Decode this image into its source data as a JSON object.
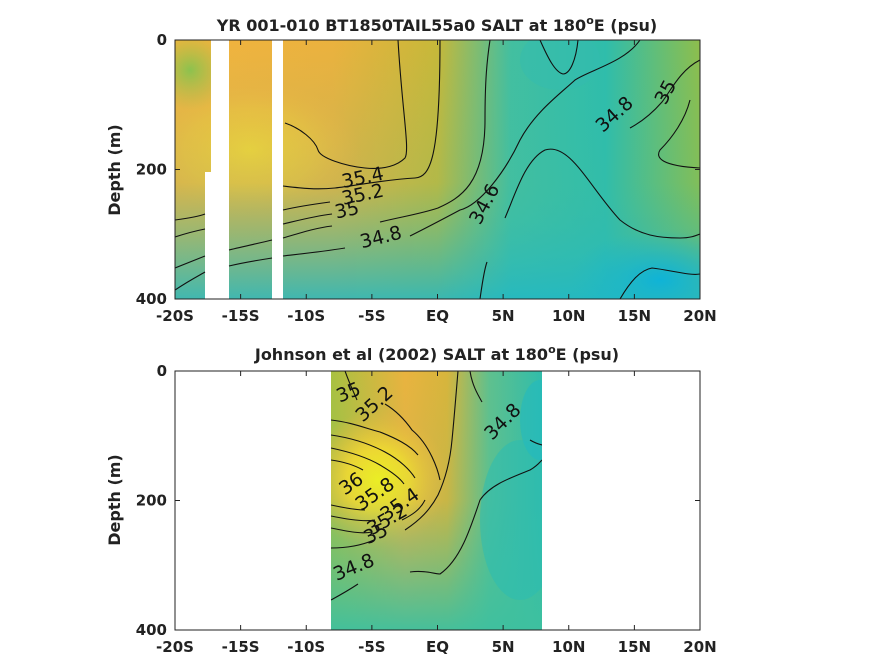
{
  "chart_data": [
    {
      "type": "heatmap",
      "title_main": "YR 001-010 BT1850TAIL55a0 SALT at 180",
      "title_sup": "o",
      "title_tail": "E (psu)",
      "ylabel": "Depth (m)",
      "xlabel": "",
      "x_ticks": [
        "-20S",
        "-15S",
        "-10S",
        "-5S",
        "EQ",
        "5N",
        "10N",
        "15N",
        "20N"
      ],
      "x_values": [
        -20,
        -15,
        -10,
        -5,
        0,
        5,
        10,
        15,
        20
      ],
      "xlim": [
        -20,
        20
      ],
      "y_ticks": [
        "0",
        "200",
        "400"
      ],
      "y_values": [
        0,
        200,
        400
      ],
      "ylim": [
        0,
        400
      ],
      "y_reversed": true,
      "colormap": "parula",
      "contour_labels": [
        {
          "text": "35.4",
          "x": -5.6,
          "y": 222
        },
        {
          "text": "35.2",
          "x": -5.6,
          "y": 248
        },
        {
          "text": "35",
          "x": -6.8,
          "y": 272
        },
        {
          "text": "34.8",
          "x": -4.2,
          "y": 314
        },
        {
          "text": "34.6",
          "x": 4.0,
          "y": 258
        },
        {
          "text": "34.8",
          "x": 13.8,
          "y": 122
        },
        {
          "text": "35",
          "x": 17.8,
          "y": 85
        }
      ]
    },
    {
      "type": "heatmap",
      "title_main": "Johnson et al (2002) SALT at 180",
      "title_sup": "o",
      "title_tail": "E (psu)",
      "ylabel": "Depth (m)",
      "xlabel": "",
      "x_ticks": [
        "-20S",
        "-15S",
        "-10S",
        "-5S",
        "EQ",
        "5N",
        "10N",
        "15N",
        "20N"
      ],
      "x_values": [
        -20,
        -15,
        -10,
        -5,
        0,
        5,
        10,
        15,
        20
      ],
      "xlim": [
        -20,
        20
      ],
      "y_ticks": [
        "0",
        "200",
        "400"
      ],
      "y_values": [
        0,
        200,
        400
      ],
      "ylim": [
        0,
        400
      ],
      "y_reversed": true,
      "data_x_range": [
        -8,
        8
      ],
      "colormap": "parula",
      "contour_labels": [
        {
          "text": "35",
          "x": -6.6,
          "y": 42
        },
        {
          "text": "35.2",
          "x": -4.5,
          "y": 58
        },
        {
          "text": "34.8",
          "x": 5.3,
          "y": 85
        },
        {
          "text": "36",
          "x": -6.3,
          "y": 182
        },
        {
          "text": "35.8",
          "x": -4.5,
          "y": 198
        },
        {
          "text": "35.4",
          "x": -2.6,
          "y": 214
        },
        {
          "text": "35.2",
          "x": -3.6,
          "y": 238
        },
        {
          "text": "35",
          "x": -4.5,
          "y": 260
        },
        {
          "text": "34.8",
          "x": -6.2,
          "y": 312
        }
      ]
    }
  ]
}
